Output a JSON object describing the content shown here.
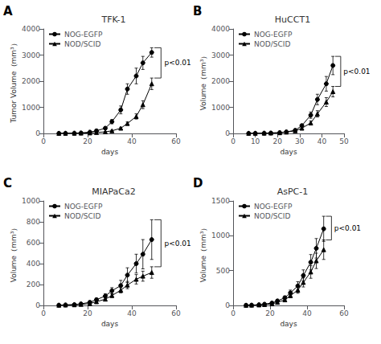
{
  "chart_data": [
    {
      "type": "line",
      "panel_label": "A",
      "title": "TFK-1",
      "xlabel": "days",
      "ylabel": "Tumor Volume（mm³）",
      "xlim": [
        0,
        60
      ],
      "xticks": [
        0,
        20,
        40,
        60
      ],
      "ylim": [
        0,
        4000
      ],
      "yticks": [
        0,
        1000,
        2000,
        3000,
        4000
      ],
      "grid": false,
      "legend": "upper left",
      "annotation": "p<0.01",
      "series": [
        {
          "name": "NOG-EGFP",
          "color": "#000000",
          "marker": "circle",
          "x": [
            7,
            10,
            14,
            17,
            21,
            24,
            28,
            31,
            35,
            38,
            42,
            45,
            49
          ],
          "values": [
            5,
            8,
            12,
            20,
            50,
            100,
            200,
            450,
            900,
            1700,
            2200,
            2700,
            3100
          ],
          "errors": [
            2,
            3,
            4,
            5,
            10,
            20,
            40,
            80,
            150,
            200,
            300,
            250,
            180
          ]
        },
        {
          "name": "NOD/SCID",
          "color": "#000000",
          "marker": "triangle",
          "x": [
            7,
            10,
            14,
            17,
            21,
            24,
            28,
            31,
            35,
            38,
            42,
            45,
            49
          ],
          "values": [
            3,
            5,
            8,
            12,
            18,
            35,
            60,
            100,
            200,
            380,
            650,
            1100,
            1900
          ],
          "errors": [
            1,
            2,
            3,
            4,
            5,
            8,
            12,
            20,
            35,
            60,
            100,
            150,
            220
          ]
        }
      ]
    },
    {
      "type": "line",
      "panel_label": "B",
      "title": "HuCCT1",
      "xlabel": "days",
      "ylabel": "Volume（mm³）",
      "xlim": [
        0,
        50
      ],
      "xticks": [
        0,
        10,
        20,
        30,
        40,
        50
      ],
      "ylim": [
        0,
        4000
      ],
      "yticks": [
        0,
        1000,
        2000,
        3000,
        4000
      ],
      "grid": false,
      "legend": "upper left",
      "annotation": "p<0.01",
      "series": [
        {
          "name": "NOG-EGFP",
          "color": "#000000",
          "marker": "circle",
          "x": [
            7,
            10,
            14,
            17,
            21,
            24,
            28,
            31,
            35,
            38,
            42,
            45
          ],
          "values": [
            5,
            8,
            12,
            18,
            30,
            60,
            120,
            300,
            700,
            1300,
            1900,
            2600
          ],
          "errors": [
            2,
            3,
            4,
            5,
            8,
            15,
            25,
            50,
            120,
            200,
            280,
            350
          ]
        },
        {
          "name": "NOD/SCID",
          "color": "#000000",
          "marker": "triangle",
          "x": [
            7,
            10,
            14,
            17,
            21,
            24,
            28,
            31,
            35,
            38,
            42,
            45
          ],
          "values": [
            4,
            6,
            10,
            15,
            25,
            50,
            100,
            200,
            400,
            750,
            1200,
            1600
          ],
          "errors": [
            1,
            2,
            3,
            4,
            6,
            12,
            20,
            40,
            80,
            120,
            170,
            200
          ]
        }
      ]
    },
    {
      "type": "line",
      "panel_label": "C",
      "title": "MIAPaCa2",
      "xlabel": "days",
      "ylabel": "Volume（mm³）",
      "xlim": [
        0,
        60
      ],
      "xticks": [
        0,
        20,
        40,
        60
      ],
      "ylim": [
        0,
        1000
      ],
      "yticks": [
        0,
        200,
        400,
        600,
        800,
        1000
      ],
      "grid": false,
      "legend": "upper left",
      "annotation": "p<0.01",
      "series": [
        {
          "name": "NOG-EGFP",
          "color": "#000000",
          "marker": "circle",
          "x": [
            7,
            10,
            14,
            17,
            21,
            24,
            28,
            31,
            35,
            38,
            42,
            45,
            49
          ],
          "values": [
            3,
            5,
            8,
            15,
            30,
            55,
            90,
            140,
            190,
            290,
            400,
            490,
            630
          ],
          "errors": [
            1,
            2,
            3,
            5,
            8,
            12,
            20,
            30,
            50,
            70,
            90,
            140,
            190
          ]
        },
        {
          "name": "NOD/SCID",
          "color": "#000000",
          "marker": "triangle",
          "x": [
            7,
            10,
            14,
            17,
            21,
            24,
            28,
            31,
            35,
            38,
            42,
            45,
            49
          ],
          "values": [
            2,
            4,
            6,
            10,
            18,
            35,
            60,
            95,
            145,
            195,
            250,
            280,
            315
          ],
          "errors": [
            1,
            2,
            2,
            3,
            5,
            8,
            12,
            18,
            25,
            35,
            45,
            48,
            55
          ]
        }
      ]
    },
    {
      "type": "line",
      "panel_label": "D",
      "title": "AsPC-1",
      "xlabel": "days",
      "ylabel": "Volume（mm³）",
      "xlim": [
        0,
        60
      ],
      "xticks": [
        0,
        20,
        40,
        60
      ],
      "ylim": [
        0,
        1500
      ],
      "yticks": [
        0,
        500,
        1000,
        1500
      ],
      "grid": false,
      "legend": "upper left",
      "annotation": "p<0.01",
      "series": [
        {
          "name": "NOG-EGFP",
          "color": "#000000",
          "marker": "circle",
          "x": [
            7,
            10,
            14,
            17,
            21,
            24,
            28,
            31,
            35,
            38,
            42,
            45,
            49
          ],
          "values": [
            3,
            5,
            10,
            18,
            35,
            65,
            110,
            180,
            280,
            430,
            620,
            820,
            1100
          ],
          "errors": [
            1,
            2,
            3,
            5,
            8,
            15,
            25,
            40,
            60,
            80,
            110,
            140,
            180
          ]
        },
        {
          "name": "NOD/SCID",
          "color": "#000000",
          "marker": "triangle",
          "x": [
            7,
            10,
            14,
            17,
            21,
            24,
            28,
            31,
            35,
            38,
            42,
            45,
            49
          ],
          "values": [
            2,
            4,
            7,
            12,
            22,
            45,
            80,
            140,
            220,
            330,
            480,
            640,
            800
          ],
          "errors": [
            1,
            2,
            2,
            3,
            5,
            10,
            18,
            30,
            45,
            65,
            90,
            110,
            140
          ]
        }
      ]
    }
  ]
}
